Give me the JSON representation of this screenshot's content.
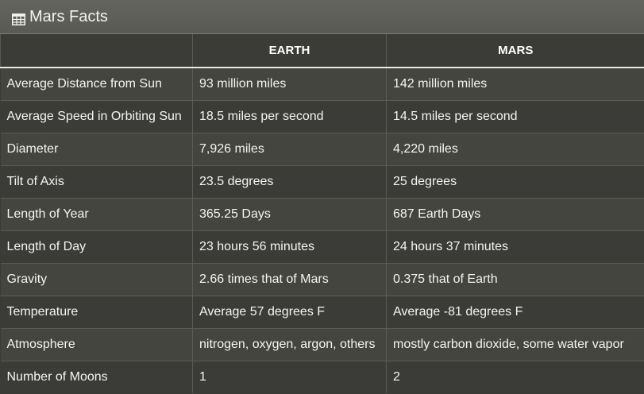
{
  "panel": {
    "title": "Mars Facts",
    "icon": "table-icon"
  },
  "table": {
    "headers": [
      "",
      "EARTH",
      "MARS"
    ],
    "rows": [
      [
        "Average Distance from Sun",
        "93 million miles",
        "142 million miles"
      ],
      [
        "Average Speed in Orbiting Sun",
        "18.5 miles per second",
        "14.5 miles per second"
      ],
      [
        "Diameter",
        "7,926 miles",
        "4,220 miles"
      ],
      [
        "Tilt of Axis",
        "23.5 degrees",
        "25 degrees"
      ],
      [
        "Length of Year",
        "365.25 Days",
        "687 Earth Days"
      ],
      [
        "Length of Day",
        "23 hours 56 minutes",
        "24 hours 37 minutes"
      ],
      [
        "Gravity",
        "2.66 times that of Mars",
        "0.375 that of Earth"
      ],
      [
        "Temperature",
        "Average 57 degrees F",
        "Average -81 degrees F"
      ],
      [
        "Atmosphere",
        "nitrogen, oxygen, argon, others",
        "mostly carbon dioxide, some water vapor"
      ],
      [
        "Number of Moons",
        "1",
        "2"
      ]
    ]
  }
}
